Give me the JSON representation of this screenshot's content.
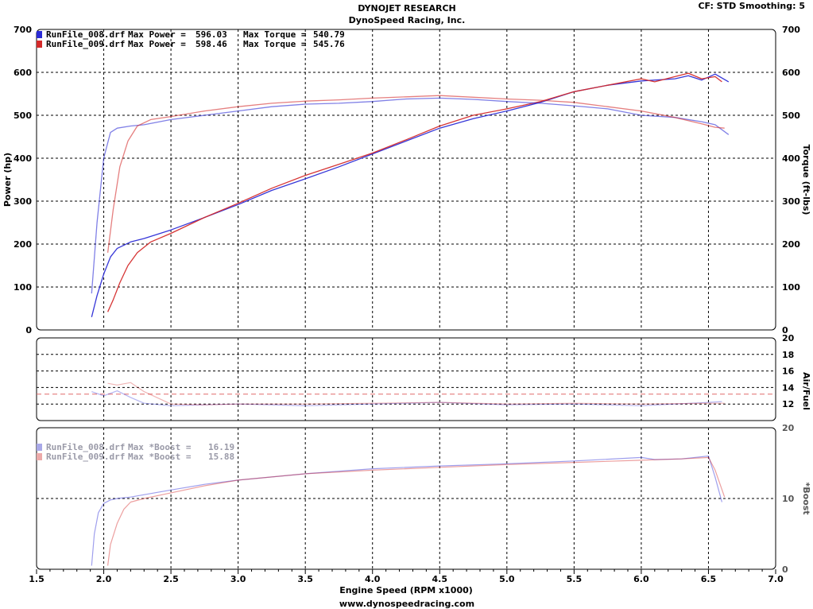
{
  "header": {
    "title": "DYNOJET RESEARCH",
    "subtitle": "DynoSpeed Racing, Inc.",
    "settings": "CF: STD  Smoothing: 5"
  },
  "footer": {
    "xlabel": "Engine Speed (RPM x1000)",
    "website": "www.dynospeedracing.com"
  },
  "colors": {
    "run_008": "#2b2bd6",
    "run_009": "#d42a2a",
    "afr_ref": "#e06a6a"
  },
  "chart_data": [
    {
      "type": "line",
      "panel": "power_torque",
      "ylabel_left": "Power (hp)",
      "ylabel_right": "Torque (ft-lbs)",
      "xlim": [
        1.5,
        7.0
      ],
      "ylim": [
        0,
        700
      ],
      "x_ticks": [
        "1.5",
        "2.0",
        "2.5",
        "3.0",
        "3.5",
        "4.0",
        "4.5",
        "5.0",
        "5.5",
        "6.0",
        "6.5",
        "7.0"
      ],
      "y_ticks": [
        "0",
        "100",
        "200",
        "300",
        "400",
        "500",
        "600",
        "700"
      ],
      "legend": [
        {
          "run": "RunFile_008.drf",
          "max_power_label": "Max Power =",
          "max_power": "596.03",
          "max_torque_label": "Max Torque =",
          "max_torque": "540.79"
        },
        {
          "run": "RunFile_009.drf",
          "max_power_label": "Max Power =",
          "max_power": "598.46",
          "max_torque_label": "Max Torque =",
          "max_torque": "545.76"
        }
      ],
      "series": [
        {
          "name": "RunFile_008.drf",
          "measure": "power",
          "color": "#2b2bd6",
          "x": [
            1.91,
            1.95,
            2.0,
            2.05,
            2.1,
            2.2,
            2.3,
            2.5,
            2.75,
            3.0,
            3.25,
            3.5,
            3.75,
            4.0,
            4.25,
            4.5,
            4.75,
            5.0,
            5.25,
            5.5,
            5.75,
            6.0,
            6.25,
            6.35,
            6.45,
            6.55,
            6.65
          ],
          "y": [
            30,
            80,
            130,
            170,
            190,
            205,
            213,
            233,
            262,
            292,
            325,
            352,
            380,
            410,
            440,
            470,
            492,
            510,
            530,
            555,
            570,
            580,
            585,
            592,
            582,
            596,
            578
          ]
        },
        {
          "name": "RunFile_009.drf",
          "measure": "power",
          "color": "#d42a2a",
          "x": [
            2.03,
            2.07,
            2.12,
            2.18,
            2.25,
            2.35,
            2.5,
            2.75,
            3.0,
            3.25,
            3.5,
            3.75,
            4.0,
            4.25,
            4.5,
            4.75,
            5.0,
            5.25,
            5.5,
            5.75,
            6.0,
            6.1,
            6.25,
            6.35,
            6.45,
            6.55,
            6.6
          ],
          "y": [
            42,
            70,
            110,
            150,
            180,
            205,
            225,
            262,
            295,
            330,
            360,
            386,
            412,
            443,
            475,
            500,
            515,
            532,
            555,
            570,
            585,
            578,
            590,
            598,
            585,
            590,
            578
          ]
        },
        {
          "name": "RunFile_008.drf",
          "measure": "torque",
          "color": "#2b2bd6",
          "x": [
            1.91,
            1.95,
            2.0,
            2.05,
            2.1,
            2.2,
            2.3,
            2.5,
            2.75,
            3.0,
            3.25,
            3.5,
            3.75,
            4.0,
            4.25,
            4.5,
            4.75,
            5.0,
            5.25,
            5.5,
            5.75,
            6.0,
            6.25,
            6.45,
            6.55,
            6.65
          ],
          "y": [
            85,
            250,
            400,
            460,
            470,
            475,
            478,
            490,
            500,
            510,
            520,
            526,
            528,
            532,
            538,
            540,
            537,
            532,
            528,
            522,
            515,
            500,
            495,
            485,
            478,
            455
          ]
        },
        {
          "name": "RunFile_009.drf",
          "measure": "torque",
          "color": "#d42a2a",
          "x": [
            2.03,
            2.07,
            2.12,
            2.18,
            2.25,
            2.35,
            2.5,
            2.75,
            3.0,
            3.25,
            3.5,
            3.75,
            4.0,
            4.25,
            4.5,
            4.75,
            5.0,
            5.25,
            5.5,
            5.75,
            6.0,
            6.25,
            6.45,
            6.55,
            6.62
          ],
          "y": [
            180,
            280,
            380,
            440,
            475,
            490,
            497,
            510,
            520,
            528,
            533,
            536,
            540,
            543,
            546,
            542,
            538,
            535,
            530,
            520,
            510,
            495,
            480,
            472,
            470
          ]
        }
      ]
    },
    {
      "type": "line",
      "panel": "air_fuel",
      "ylabel_right": "Air/Fuel",
      "xlim": [
        1.5,
        7.0
      ],
      "ylim": [
        10,
        20
      ],
      "y_ticks": [
        "12",
        "14",
        "16",
        "18",
        "20"
      ],
      "reference_line": 13.2,
      "series": [
        {
          "name": "RunFile_008.drf",
          "color": "#2b2bd6",
          "x": [
            1.91,
            2.0,
            2.1,
            2.2,
            2.3,
            2.5,
            2.75,
            3.0,
            3.5,
            4.0,
            4.5,
            5.0,
            5.5,
            6.0,
            6.5,
            6.6
          ],
          "y": [
            13.5,
            13.0,
            13.6,
            12.8,
            12.1,
            11.8,
            11.9,
            12.0,
            11.8,
            12.0,
            12.2,
            11.9,
            12.0,
            11.8,
            12.2,
            12.3
          ]
        },
        {
          "name": "RunFile_009.drf",
          "color": "#d42a2a",
          "x": [
            2.03,
            2.1,
            2.2,
            2.3,
            2.5,
            2.75,
            3.0,
            3.5,
            4.0,
            4.5,
            5.0,
            5.5,
            6.0,
            6.5,
            6.62
          ],
          "y": [
            14.5,
            14.3,
            14.6,
            13.5,
            12.0,
            11.9,
            12.0,
            12.0,
            12.1,
            12.2,
            12.0,
            12.1,
            12.0,
            12.1,
            12.1
          ]
        }
      ]
    },
    {
      "type": "line",
      "panel": "boost",
      "ylabel_right": "*Boost",
      "xlim": [
        1.5,
        7.0
      ],
      "ylim": [
        0,
        20
      ],
      "y_ticks": [
        "0",
        "10",
        "20"
      ],
      "legend": [
        {
          "run": "RunFile_008.drf",
          "label": "Max *Boost =",
          "value": "16.19"
        },
        {
          "run": "RunFile_009.drf",
          "label": "Max *Boost =",
          "value": "15.88"
        }
      ],
      "series": [
        {
          "name": "RunFile_008.drf",
          "color": "#2b2bd6",
          "x": [
            1.91,
            1.93,
            1.96,
            2.0,
            2.05,
            2.1,
            2.2,
            2.5,
            2.75,
            3.0,
            3.5,
            4.0,
            4.5,
            5.0,
            5.5,
            6.0,
            6.1,
            6.3,
            6.5,
            6.55,
            6.6
          ],
          "y": [
            0.5,
            5.0,
            8.0,
            9.3,
            9.8,
            10.0,
            10.2,
            11.2,
            12.0,
            12.6,
            13.5,
            14.2,
            14.6,
            14.9,
            15.3,
            15.8,
            15.5,
            15.6,
            16.0,
            13.0,
            9.5
          ]
        },
        {
          "name": "RunFile_009.drf",
          "color": "#d42a2a",
          "x": [
            2.03,
            2.05,
            2.1,
            2.15,
            2.2,
            2.3,
            2.5,
            2.75,
            3.0,
            3.5,
            4.0,
            4.5,
            5.0,
            5.5,
            6.0,
            6.3,
            6.5,
            6.55,
            6.62
          ],
          "y": [
            0.5,
            3.5,
            6.5,
            8.5,
            9.5,
            10.0,
            10.8,
            11.8,
            12.6,
            13.5,
            14.0,
            14.4,
            14.8,
            15.1,
            15.4,
            15.6,
            15.8,
            14.0,
            10.2
          ]
        }
      ]
    }
  ]
}
